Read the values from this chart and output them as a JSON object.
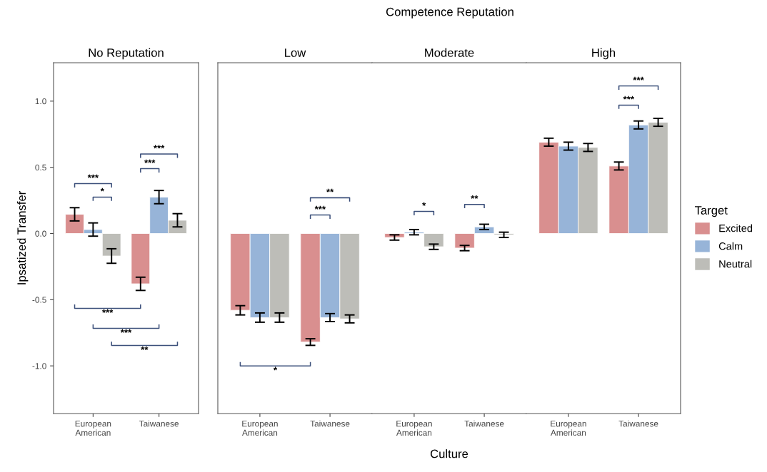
{
  "chart_data": [
    {
      "type": "bar",
      "title": "No Reputation",
      "ylabel": "Ipsatized Transfer",
      "categories": [
        "European\nAmerican",
        "Taiwanese"
      ],
      "ylim": [
        -1.36,
        1.29
      ],
      "yticks": [
        {
          "value": -1.0,
          "label": "-1.0"
        },
        {
          "value": -0.5,
          "label": "-0.5"
        },
        {
          "value": 0.0,
          "label": "0.0"
        },
        {
          "value": 0.5,
          "label": "0.5"
        },
        {
          "value": 1.0,
          "label": "1.0"
        }
      ],
      "grid": false,
      "series": [
        {
          "color": "#d98f8f",
          "values": [
            0.145,
            -0.38
          ],
          "errors": [
            0.05,
            0.05
          ]
        },
        {
          "color": "#97b4d8",
          "values": [
            0.03,
            0.275
          ],
          "errors": [
            0.05,
            0.05
          ]
        },
        {
          "color": "#bdbdb8",
          "values": [
            -0.17,
            0.1
          ],
          "errors": [
            0.055,
            0.05
          ]
        }
      ],
      "annotations": [
        "***",
        "*",
        "***",
        "***",
        "***",
        "***",
        "**"
      ]
    },
    {
      "type": "bar",
      "title": "Low",
      "categories": [
        "European\nAmerican",
        "Taiwanese"
      ],
      "ylim": [
        -1.36,
        1.29
      ],
      "tick_labels": "x",
      "grid": false,
      "series": [
        {
          "color": "#d98f8f",
          "values": [
            -0.58,
            -0.82
          ],
          "errors": [
            0.035,
            0.025
          ]
        },
        {
          "color": "#97b4d8",
          "values": [
            -0.635,
            -0.635
          ],
          "errors": [
            0.035,
            0.03
          ]
        },
        {
          "color": "#bdbdb8",
          "values": [
            -0.635,
            -0.645
          ],
          "errors": [
            0.035,
            0.03
          ]
        }
      ],
      "annotations": [
        "***",
        "**",
        "*"
      ]
    },
    {
      "type": "bar",
      "title": "Moderate",
      "xlabel": "Culture",
      "categories": [
        "European\nAmerican",
        "Taiwanese"
      ],
      "ylim": [
        -1.36,
        1.29
      ],
      "tick_labels": "x",
      "grid": false,
      "series": [
        {
          "color": "#d98f8f",
          "values": [
            -0.03,
            -0.11
          ],
          "errors": [
            0.02,
            0.02
          ]
        },
        {
          "color": "#97b4d8",
          "values": [
            0.01,
            0.05
          ],
          "errors": [
            0.02,
            0.02
          ]
        },
        {
          "color": "#bdbdb8",
          "values": [
            -0.1,
            -0.01
          ],
          "errors": [
            0.02,
            0.02
          ]
        }
      ],
      "annotations": [
        "Competence Reputation",
        "*",
        "**"
      ]
    },
    {
      "type": "bar",
      "title": "High",
      "categories": [
        "European\nAmerican",
        "Taiwanese"
      ],
      "ylim": [
        -1.36,
        1.29
      ],
      "tick_labels": "x",
      "grid": false,
      "legend": "right",
      "legend_title": "Target",
      "series": [
        {
          "name": "Excited",
          "color": "#d98f8f",
          "values": [
            0.69,
            0.51
          ],
          "errors": [
            0.03,
            0.03
          ]
        },
        {
          "name": "Calm",
          "color": "#97b4d8",
          "values": [
            0.66,
            0.82
          ],
          "errors": [
            0.03,
            0.03
          ]
        },
        {
          "name": "Neutral",
          "color": "#bdbdb8",
          "values": [
            0.65,
            0.84
          ],
          "errors": [
            0.03,
            0.03
          ]
        }
      ],
      "annotations": [
        "***",
        "***"
      ]
    }
  ]
}
